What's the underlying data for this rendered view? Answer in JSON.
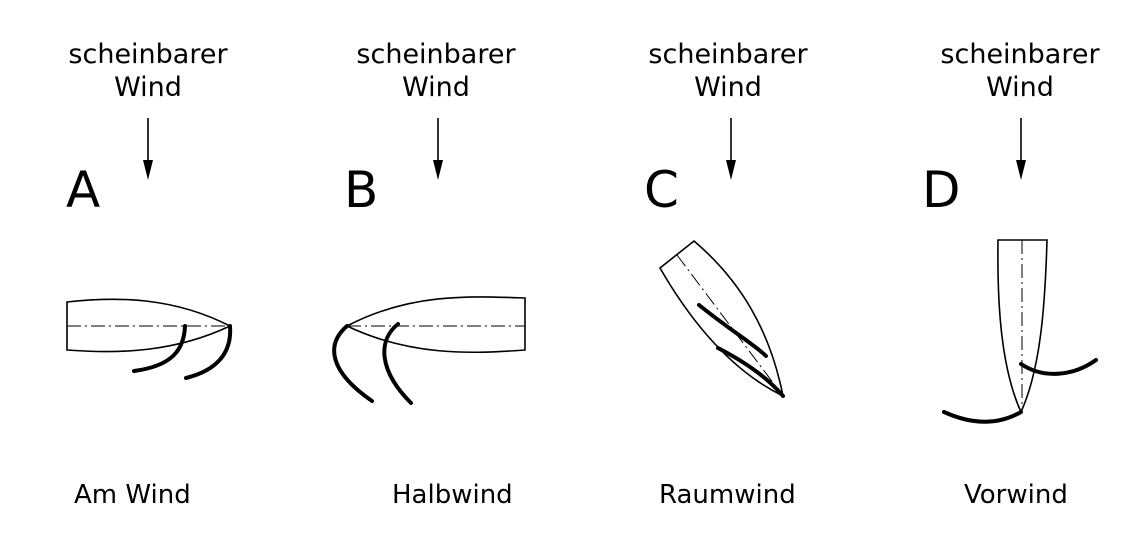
{
  "panels": [
    {
      "letter": "A",
      "wind_label_line1": "scheinbarer",
      "wind_label_line2": "Wind",
      "caption": "Am Wind"
    },
    {
      "letter": "B",
      "wind_label_line1": "scheinbarer",
      "wind_label_line2": "Wind",
      "caption": "Halbwind"
    },
    {
      "letter": "C",
      "wind_label_line1": "scheinbarer",
      "wind_label_line2": "Wind",
      "caption": "Raumwind"
    },
    {
      "letter": "D",
      "wind_label_line1": "scheinbarer",
      "wind_label_line2": "Wind",
      "caption": "Vorwind"
    }
  ]
}
